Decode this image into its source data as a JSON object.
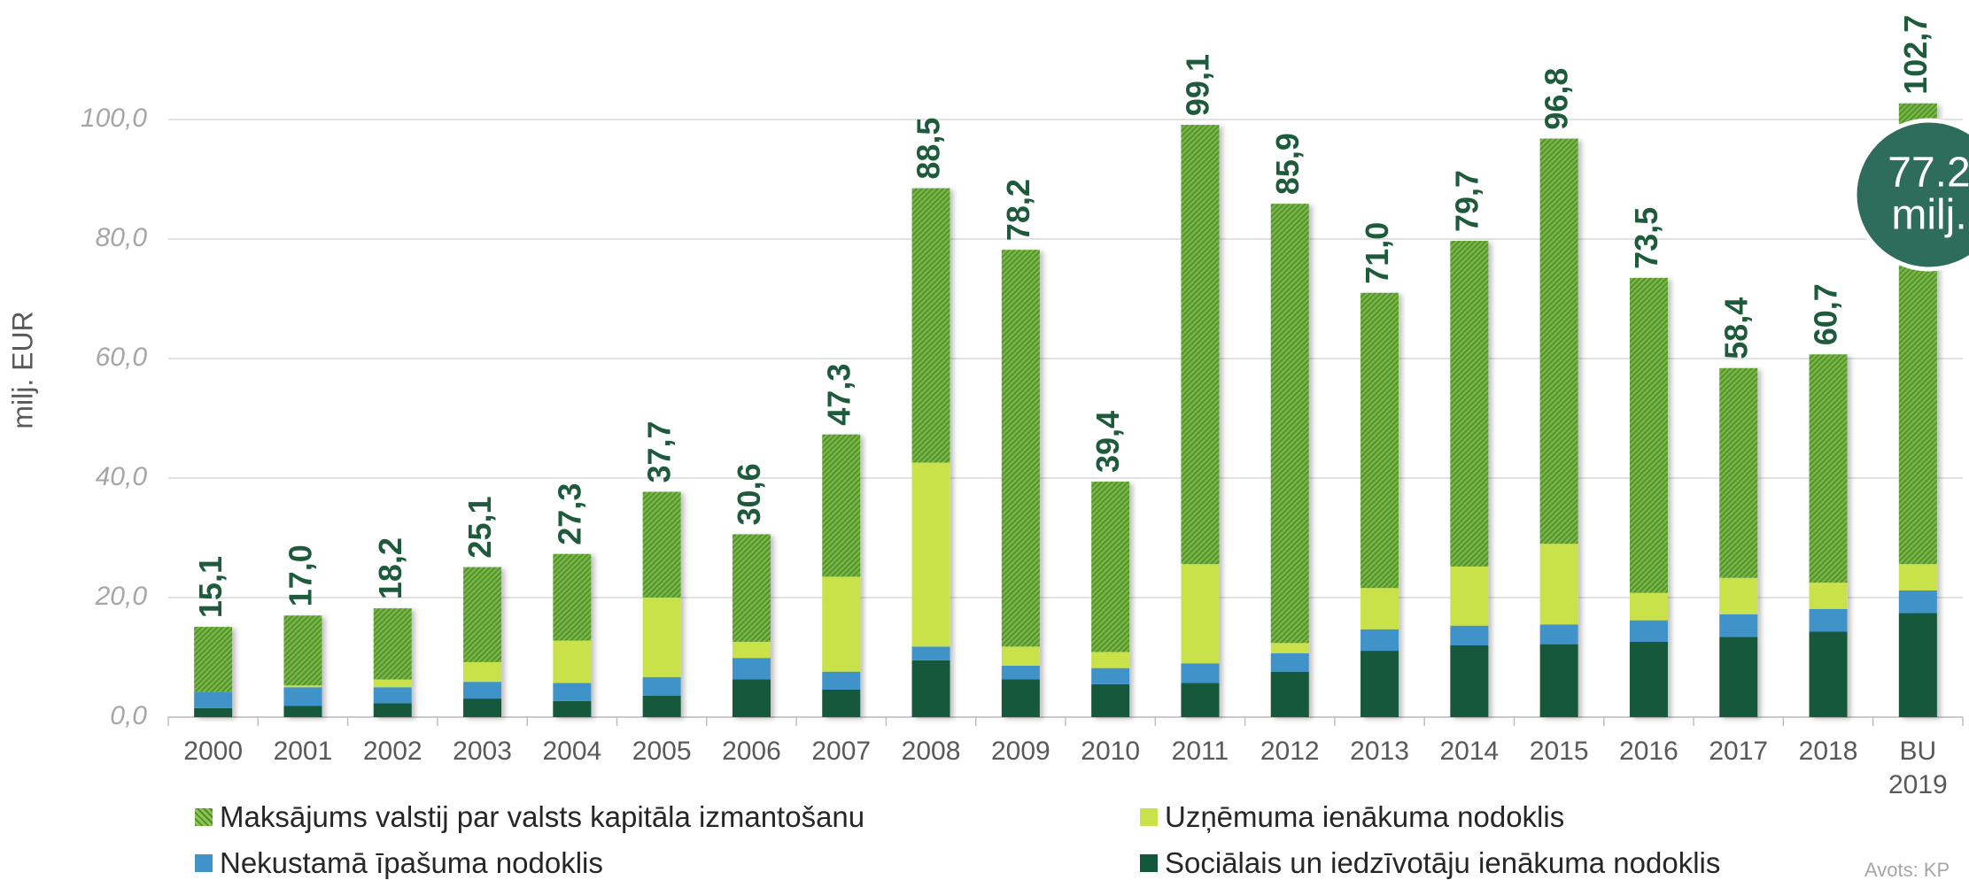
{
  "chart_data": {
    "type": "stacked_bar",
    "y_label": "milj. EUR",
    "categories": [
      "2000",
      "2001",
      "2002",
      "2003",
      "2004",
      "2005",
      "2006",
      "2007",
      "2008",
      "2009",
      "2010",
      "2011",
      "2012",
      "2013",
      "2014",
      "2015",
      "2016",
      "2017",
      "2018",
      "BU 2019"
    ],
    "series": [
      {
        "name": "Maksājums valstij par valsts kapitāla izmantošanu",
        "color": "#78b443",
        "values": [
          10.9,
          11.7,
          11.9,
          15.9,
          14.5,
          17.7,
          18.0,
          23.8,
          45.9,
          66.4,
          28.5,
          73.5,
          73.5,
          49.4,
          54.5,
          67.8,
          52.7,
          35.1,
          38.2,
          77.1
        ]
      },
      {
        "name": "Uzņēmuma ienākuma nodoklis",
        "color": "#c9e24a",
        "values": [
          0,
          0.3,
          1.3,
          3.3,
          7.1,
          13.3,
          2.7,
          15.9,
          30.8,
          3.2,
          2.7,
          16.6,
          1.7,
          6.9,
          9.9,
          13.5,
          4.6,
          6.1,
          4.4,
          4.4
        ]
      },
      {
        "name": "Nekustamā īpašuma nodoklis",
        "color": "#3f93c8",
        "values": [
          2.7,
          3.1,
          2.7,
          2.8,
          3.0,
          3.1,
          3.6,
          3.0,
          2.3,
          2.3,
          2.7,
          3.3,
          3.1,
          3.6,
          3.3,
          3.3,
          3.6,
          3.8,
          3.8,
          3.8
        ]
      },
      {
        "name": "Sociālais un iedzīvotāju ienākuma nodoklis",
        "color": "#13583a",
        "values": [
          1.5,
          1.9,
          2.3,
          3.1,
          2.7,
          3.6,
          6.3,
          4.6,
          9.5,
          6.3,
          5.5,
          5.7,
          7.6,
          11.1,
          12.0,
          12.2,
          12.6,
          13.4,
          14.3,
          17.4
        ]
      }
    ],
    "totals": [
      15.1,
      17.0,
      18.2,
      25.1,
      27.3,
      37.7,
      30.6,
      47.3,
      88.5,
      78.2,
      39.4,
      99.1,
      85.9,
      71.0,
      79.7,
      96.8,
      73.5,
      58.4,
      60.7,
      102.7
    ],
    "total_labels": [
      "15,1",
      "17,0",
      "18,2",
      "25,1",
      "27,3",
      "37,7",
      "30,6",
      "47,3",
      "88,5",
      "78,2",
      "39,4",
      "99,1",
      "85,9",
      "71,0",
      "79,7",
      "96,8",
      "73,5",
      "58,4",
      "60,7",
      "102,7"
    ],
    "ylim": [
      0,
      120
    ],
    "yticks": [
      {
        "value": 0,
        "label": "0,0"
      },
      {
        "value": 20,
        "label": "20,0"
      },
      {
        "value": 40,
        "label": "40,0"
      },
      {
        "value": 60,
        "label": "60,0"
      },
      {
        "value": 80,
        "label": "80,0"
      },
      {
        "value": 100,
        "label": "100,0"
      }
    ],
    "grid": true,
    "legend": "bottom",
    "callout": {
      "value": "77.2",
      "unit": "milj."
    },
    "source": "Avots: KP"
  }
}
